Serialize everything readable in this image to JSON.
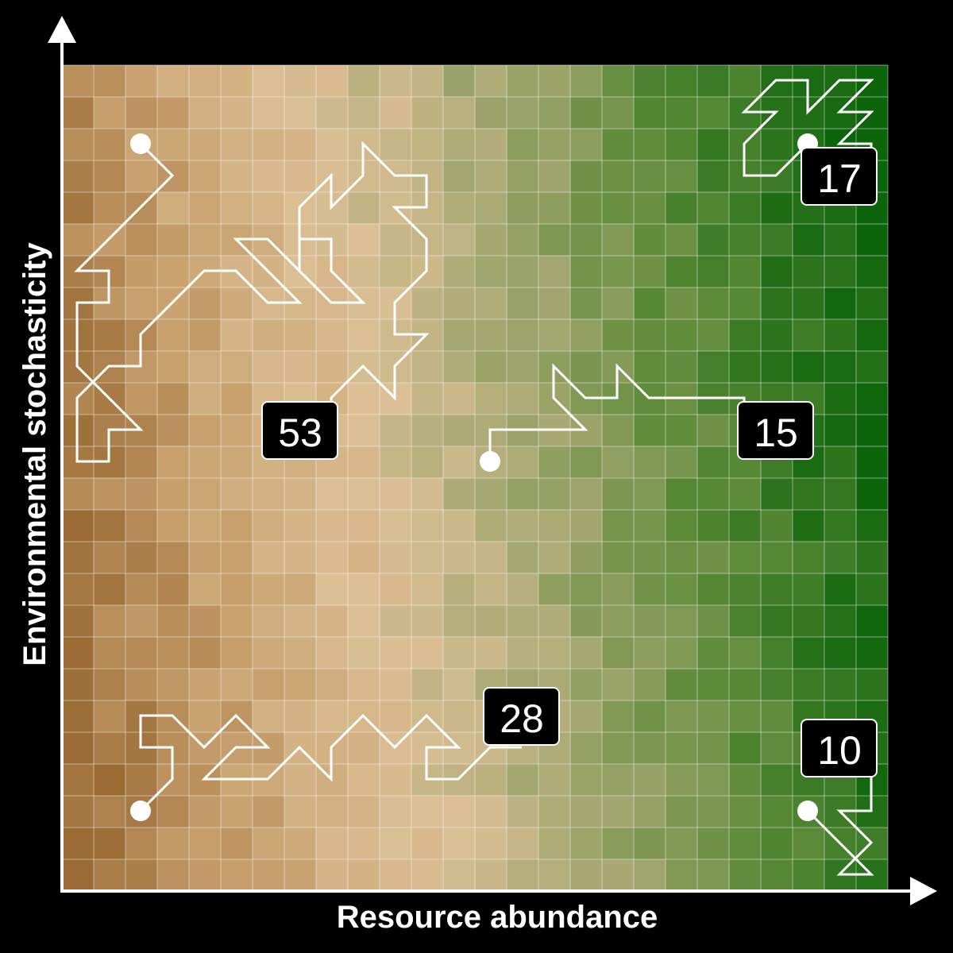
{
  "x_axis_label": "Resource abundance",
  "y_axis_label": "Environmental stochasticity",
  "colors": {
    "background": "#000000",
    "axis": "#ffffff",
    "path": "#ffffff",
    "label_box": "#000000",
    "label_text": "#ffffff",
    "stops": [
      "#9a6b35",
      "#c9a270",
      "#dcc096",
      "#a0a56d",
      "#5b8a38",
      "#0d650b"
    ]
  },
  "trajectories": [
    {
      "label": "53",
      "steps": [
        [
          0,
          0
        ],
        [
          1,
          1
        ],
        [
          0,
          0
        ]
      ]
    },
    {
      "label": "15",
      "steps": [
        [
          0,
          0
        ]
      ]
    },
    {
      "label": "28",
      "steps": [
        [
          0,
          0
        ]
      ]
    },
    {
      "label": "17",
      "steps": [
        [
          0,
          0
        ]
      ]
    },
    {
      "label": "10",
      "steps": [
        [
          0,
          0
        ]
      ]
    }
  ]
}
